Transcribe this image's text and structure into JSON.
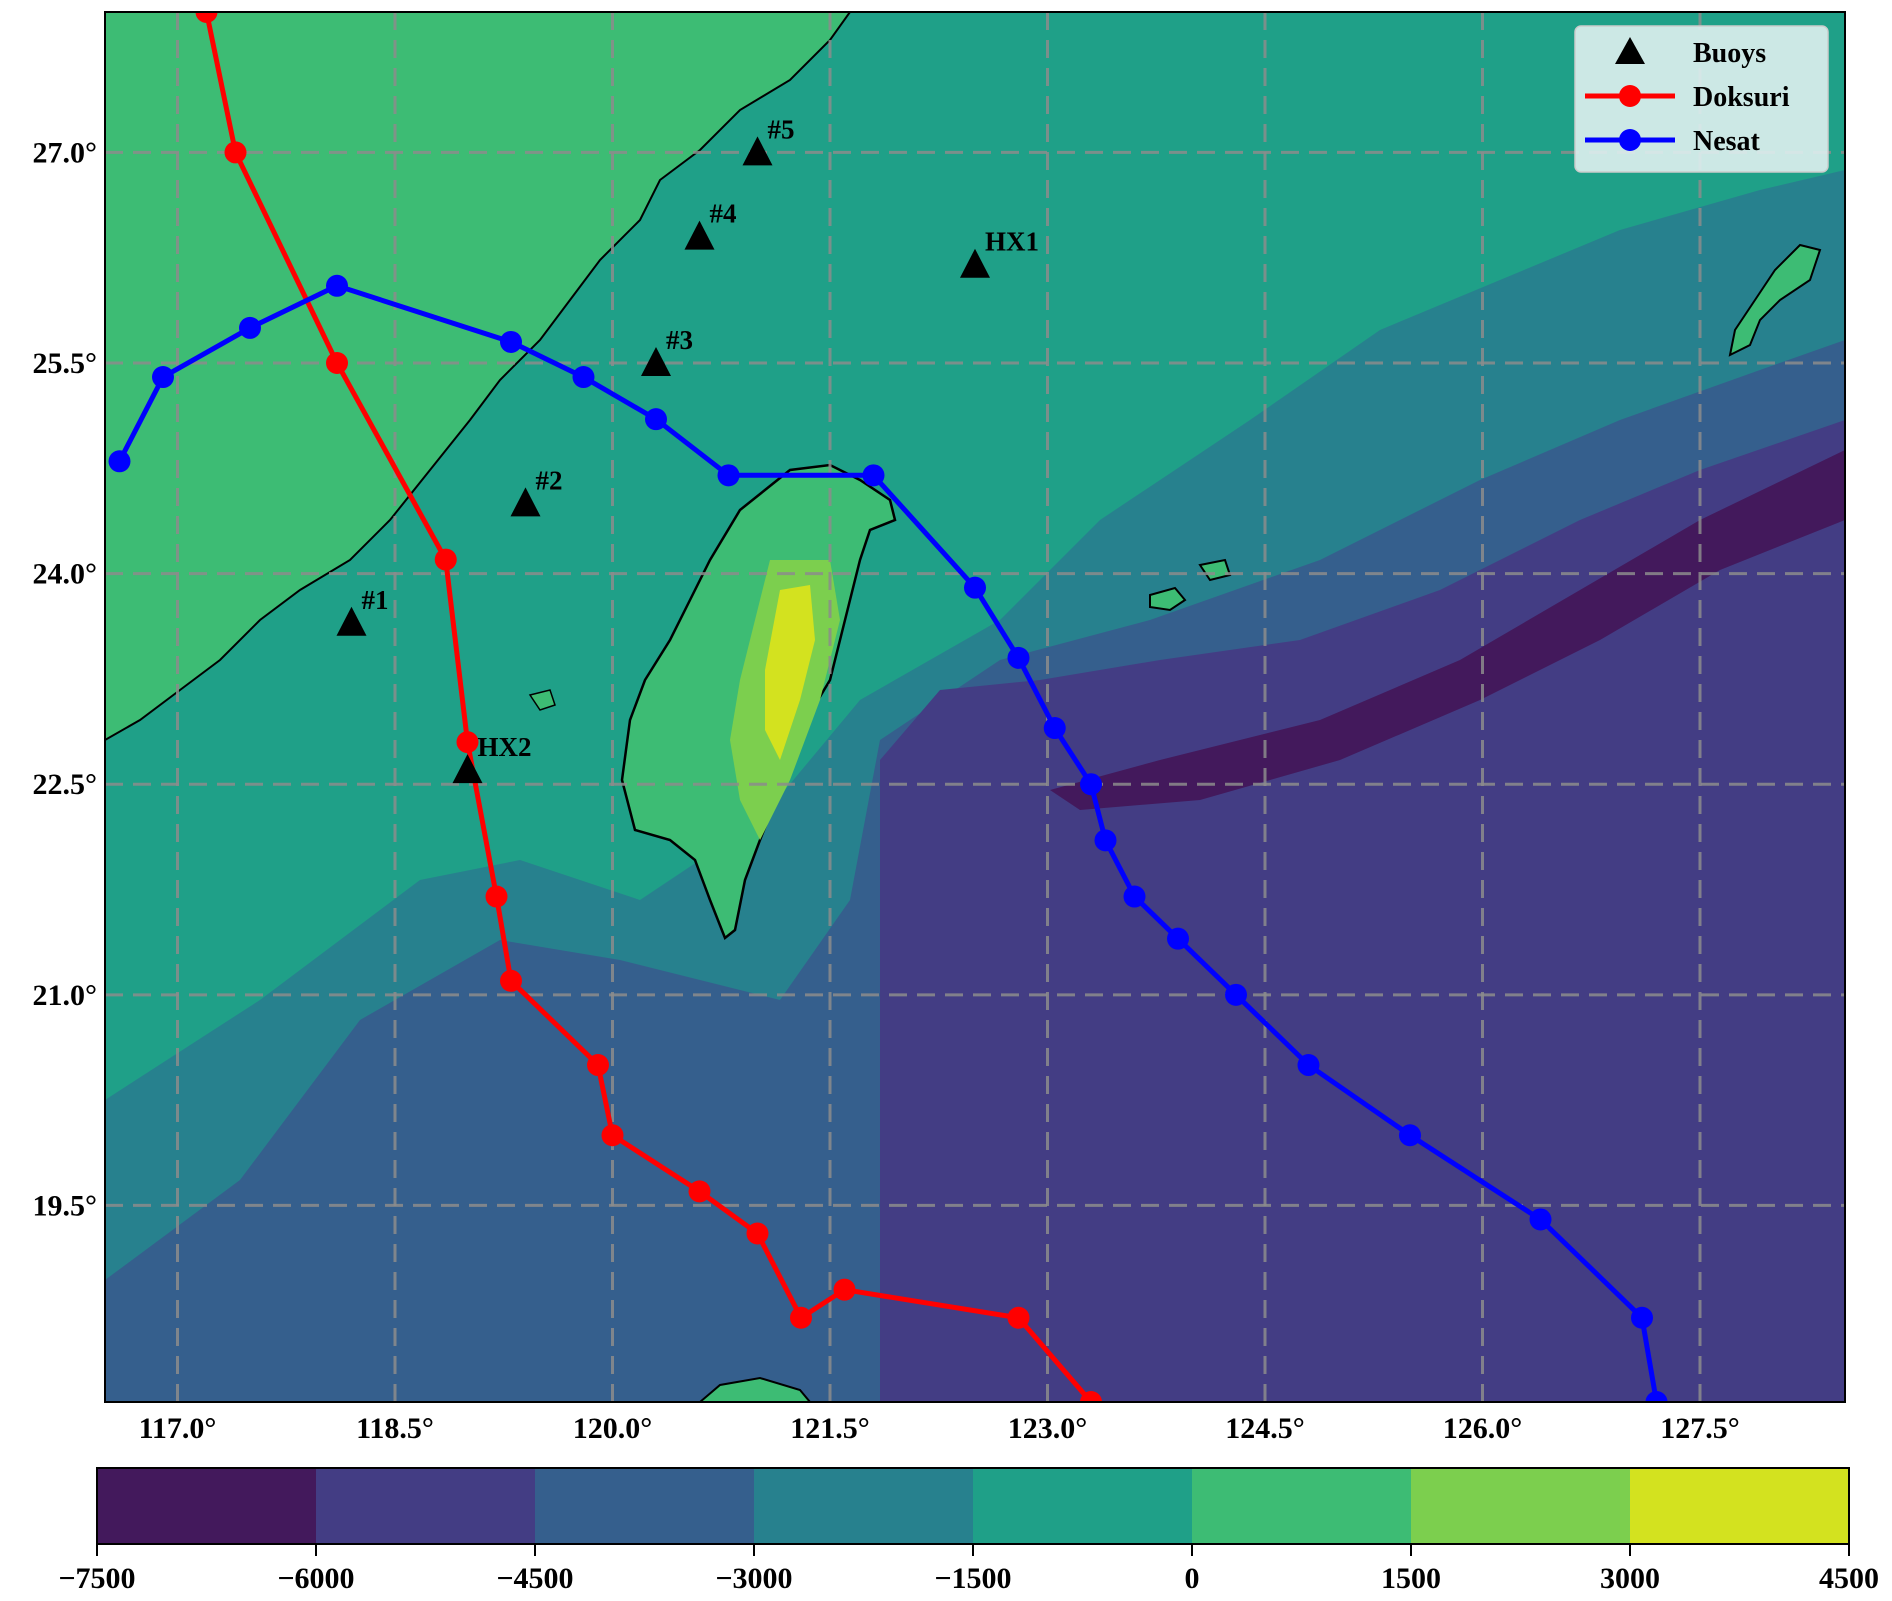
{
  "map": {
    "lon_range": [
      116.5,
      128.5
    ],
    "lat_range": [
      18.1,
      28.0
    ],
    "lon_ticks": [
      117.0,
      118.5,
      120.0,
      121.5,
      123.0,
      124.5,
      126.0,
      127.5
    ],
    "lat_ticks": [
      19.5,
      21.0,
      22.5,
      24.0,
      25.5,
      27.0
    ],
    "lon_tick_labels": [
      "117.0°",
      "118.5°",
      "120.0°",
      "121.5°",
      "123.0°",
      "124.5°",
      "126.0°",
      "127.5°"
    ],
    "lat_tick_labels": [
      "19.5°",
      "21.0°",
      "22.5°",
      "24.0°",
      "25.5°",
      "27.0°"
    ],
    "grid": true,
    "grid_style": "dashed"
  },
  "colorbar": {
    "levels": [
      -7500,
      -6000,
      -4500,
      -3000,
      -1500,
      0,
      1500,
      3000,
      4500
    ],
    "level_labels": [
      "−7500",
      "−6000",
      "−4500",
      "−3000",
      "−1500",
      "0",
      "1500",
      "3000",
      "4500"
    ],
    "colors": [
      "#43195c",
      "#433d84",
      "#355f8d",
      "#27818e",
      "#1fa088",
      "#3dbc74",
      "#7ccf4e",
      "#d3e21f"
    ],
    "orientation": "horizontal"
  },
  "legend": {
    "placement": "top-right",
    "entries": [
      {
        "label": "Buoys",
        "marker": "triangle",
        "color": "#000000"
      },
      {
        "label": "Doksuri",
        "marker": "circle-line",
        "color": "#ff0000"
      },
      {
        "label": "Nesat",
        "marker": "circle-line",
        "color": "#0000ff"
      }
    ]
  },
  "buoys": [
    {
      "label": "#1",
      "lon": 118.2,
      "lat": 23.65
    },
    {
      "label": "HX2",
      "lon": 119.0,
      "lat": 22.6
    },
    {
      "label": "#2",
      "lon": 119.4,
      "lat": 24.5
    },
    {
      "label": "#3",
      "lon": 120.3,
      "lat": 25.5
    },
    {
      "label": "#4",
      "lon": 120.6,
      "lat": 26.4
    },
    {
      "label": "#5",
      "lon": 121.0,
      "lat": 27.0
    },
    {
      "label": "HX1",
      "lon": 122.5,
      "lat": 26.2
    }
  ],
  "tracks": [
    {
      "name": "Doksuri",
      "color": "#ff0000",
      "points": [
        [
          117.2,
          28.0
        ],
        [
          117.4,
          27.0
        ],
        [
          118.1,
          25.5
        ],
        [
          118.85,
          24.1
        ],
        [
          119.0,
          22.8
        ],
        [
          119.2,
          21.7
        ],
        [
          119.3,
          21.1
        ],
        [
          119.9,
          20.5
        ],
        [
          120.0,
          20.0
        ],
        [
          120.6,
          19.6
        ],
        [
          121.0,
          19.3
        ],
        [
          121.3,
          18.7
        ],
        [
          121.6,
          18.9
        ],
        [
          122.8,
          18.7
        ],
        [
          123.3,
          18.1
        ]
      ]
    },
    {
      "name": "Nesat",
      "color": "#0000ff",
      "points": [
        [
          116.6,
          24.8
        ],
        [
          116.9,
          25.4
        ],
        [
          117.5,
          25.75
        ],
        [
          118.1,
          26.05
        ],
        [
          119.3,
          25.65
        ],
        [
          119.8,
          25.4
        ],
        [
          120.3,
          25.1
        ],
        [
          120.8,
          24.7
        ],
        [
          121.8,
          24.7
        ],
        [
          122.5,
          23.9
        ],
        [
          122.8,
          23.4
        ],
        [
          123.05,
          22.9
        ],
        [
          123.3,
          22.5
        ],
        [
          123.4,
          22.1
        ],
        [
          123.6,
          21.7
        ],
        [
          123.9,
          21.4
        ],
        [
          124.3,
          21.0
        ],
        [
          124.8,
          20.5
        ],
        [
          125.5,
          20.0
        ],
        [
          126.4,
          19.4
        ],
        [
          127.1,
          18.7
        ],
        [
          127.2,
          18.1
        ]
      ]
    }
  ]
}
